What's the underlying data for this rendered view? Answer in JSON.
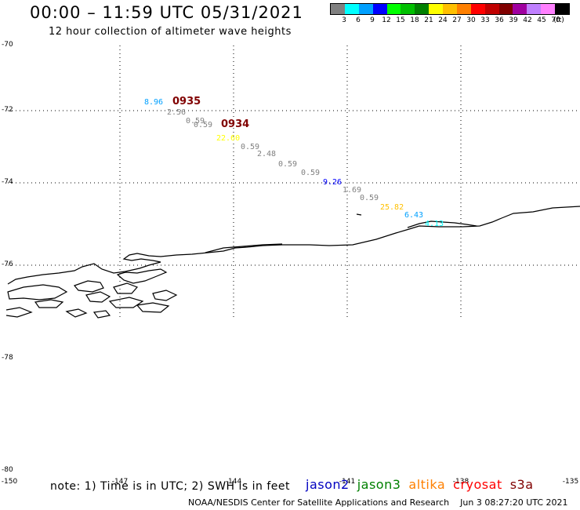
{
  "header": {
    "title": "00:00 – 11:59 UTC 05/31/2021",
    "subtitle": "12 hour collection of altimeter wave heights"
  },
  "colorbar": {
    "unit": "(ft)",
    "colors": [
      "#808080",
      "#00ffff",
      "#00a0ff",
      "#0000ff",
      "#00ff00",
      "#00c000",
      "#008000",
      "#ffff00",
      "#ffc000",
      "#ff8000",
      "#ff0000",
      "#c00000",
      "#800000",
      "#a000a0",
      "#c080ff",
      "#ff80ff",
      "#000000"
    ],
    "ticks": [
      "3",
      "6",
      "9",
      "12",
      "15",
      "18",
      "21",
      "24",
      "27",
      "30",
      "33",
      "36",
      "39",
      "42",
      "45",
      "70"
    ]
  },
  "axes": {
    "y_labels": [
      "-70",
      "-72",
      "-74",
      "-76",
      "-78",
      "-80"
    ],
    "x_labels": [
      "-150",
      "-147",
      "-144",
      "-141",
      "-138",
      "-135"
    ]
  },
  "observations": [
    {
      "label": "8.96",
      "color": "#00a0ff"
    },
    {
      "label": "0935",
      "color": "#800000",
      "kind": "time"
    },
    {
      "label": "2.56",
      "color": "#808080"
    },
    {
      "label": "0.59",
      "color": "#808080"
    },
    {
      "label": "0.59",
      "color": "#808080"
    },
    {
      "label": "0934",
      "color": "#800000",
      "kind": "time"
    },
    {
      "label": "22.60",
      "color": "#ffff00"
    },
    {
      "label": "0.59",
      "color": "#808080"
    },
    {
      "label": "2.48",
      "color": "#808080"
    },
    {
      "label": "0.59",
      "color": "#808080"
    },
    {
      "label": "0.59",
      "color": "#808080"
    },
    {
      "label": "9.26",
      "color": "#0000ff"
    },
    {
      "label": "1.69",
      "color": "#808080"
    },
    {
      "label": "0.59",
      "color": "#808080"
    },
    {
      "label": "25.82",
      "color": "#ffc000"
    },
    {
      "label": "6.43",
      "color": "#00a0ff"
    },
    {
      "label": "4.13",
      "color": "#00ffff"
    }
  ],
  "footer": {
    "note": "note: 1) Time is in UTC; 2) SWH is in feet",
    "satellites": [
      {
        "name": "jason2",
        "color": "#0000c0"
      },
      {
        "name": "jason3",
        "color": "#008000"
      },
      {
        "name": "altika",
        "color": "#ff8000"
      },
      {
        "name": "cryosat",
        "color": "#ff0000"
      },
      {
        "name": "s3a",
        "color": "#800000"
      }
    ],
    "credit": "NOAA/NESDIS Center for Satellite Applications and Research",
    "timestamp": "Jun  3 08:27:20 UTC 2021"
  }
}
